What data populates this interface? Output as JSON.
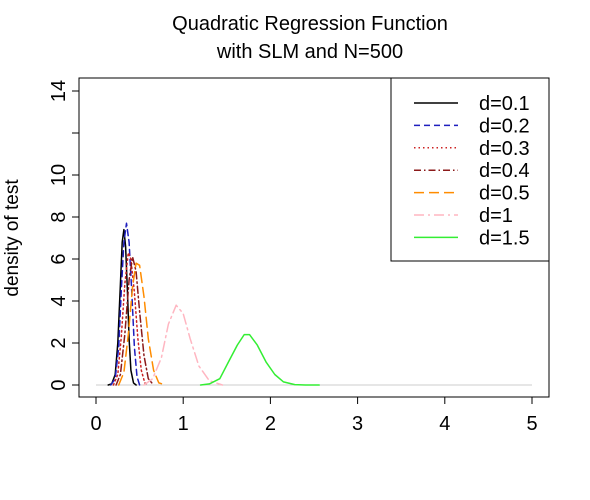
{
  "chart_data": {
    "type": "line",
    "title_lines": [
      "Quadratic Regression Function",
      "with SLM and N=500"
    ],
    "xlabel": "",
    "ylabel": "density of test",
    "xlim": [
      0,
      5
    ],
    "ylim": [
      0,
      14
    ],
    "x_ticks": [
      0,
      1,
      2,
      3,
      4,
      5
    ],
    "y_ticks": [
      0,
      2,
      4,
      6,
      8,
      10,
      14
    ],
    "grid": false,
    "legend_position": "top-right",
    "baseline": 0,
    "series": [
      {
        "name": "d=0.1",
        "color": "#000000",
        "dash": "solid",
        "width": 1.5,
        "points": [
          [
            0.14,
            0
          ],
          [
            0.18,
            0.05
          ],
          [
            0.22,
            0.5
          ],
          [
            0.25,
            2.0
          ],
          [
            0.28,
            4.8
          ],
          [
            0.3,
            6.8
          ],
          [
            0.32,
            7.4
          ],
          [
            0.34,
            6.6
          ],
          [
            0.36,
            4.5
          ],
          [
            0.38,
            2.2
          ],
          [
            0.4,
            0.7
          ],
          [
            0.43,
            0.1
          ],
          [
            0.46,
            0
          ]
        ]
      },
      {
        "name": "d=0.2",
        "color": "#1f1fbf",
        "dash": "6,4",
        "width": 1.5,
        "points": [
          [
            0.17,
            0
          ],
          [
            0.22,
            0.3
          ],
          [
            0.26,
            1.8
          ],
          [
            0.29,
            4.5
          ],
          [
            0.32,
            6.8
          ],
          [
            0.35,
            7.7
          ],
          [
            0.38,
            6.8
          ],
          [
            0.41,
            4.4
          ],
          [
            0.44,
            1.8
          ],
          [
            0.47,
            0.4
          ],
          [
            0.5,
            0
          ]
        ]
      },
      {
        "name": "d=0.3",
        "color": "#cc2222",
        "dash": "1.5,3",
        "width": 1.5,
        "points": [
          [
            0.2,
            0
          ],
          [
            0.25,
            0.5
          ],
          [
            0.29,
            2.3
          ],
          [
            0.33,
            4.8
          ],
          [
            0.37,
            6.3
          ],
          [
            0.4,
            6.0
          ],
          [
            0.44,
            4.4
          ],
          [
            0.48,
            2.2
          ],
          [
            0.52,
            0.7
          ],
          [
            0.56,
            0.1
          ],
          [
            0.6,
            0
          ]
        ]
      },
      {
        "name": "d=0.4",
        "color": "#8b1a1a",
        "dash": "7,3,1.5,3",
        "width": 1.5,
        "points": [
          [
            0.23,
            0
          ],
          [
            0.28,
            0.5
          ],
          [
            0.33,
            2.4
          ],
          [
            0.38,
            5.0
          ],
          [
            0.42,
            6.1
          ],
          [
            0.46,
            5.4
          ],
          [
            0.5,
            3.5
          ],
          [
            0.55,
            1.4
          ],
          [
            0.6,
            0.3
          ],
          [
            0.66,
            0
          ]
        ]
      },
      {
        "name": "d=0.5",
        "color": "#ff8c00",
        "dash": "10,5",
        "width": 1.5,
        "points": [
          [
            0.26,
            0
          ],
          [
            0.32,
            0.6
          ],
          [
            0.37,
            2.4
          ],
          [
            0.42,
            4.7
          ],
          [
            0.46,
            5.8
          ],
          [
            0.5,
            5.7
          ],
          [
            0.55,
            4.2
          ],
          [
            0.6,
            2.2
          ],
          [
            0.66,
            0.7
          ],
          [
            0.72,
            0.1
          ],
          [
            0.8,
            0
          ]
        ]
      },
      {
        "name": "d=1",
        "color": "#ffb6c1",
        "dash": "10,4,2,4",
        "width": 1.5,
        "points": [
          [
            0.55,
            0
          ],
          [
            0.65,
            0.3
          ],
          [
            0.75,
            1.3
          ],
          [
            0.83,
            2.9
          ],
          [
            0.92,
            3.8
          ],
          [
            1.0,
            3.4
          ],
          [
            1.08,
            2.2
          ],
          [
            1.18,
            0.9
          ],
          [
            1.3,
            0.2
          ],
          [
            1.45,
            0
          ]
        ]
      },
      {
        "name": "d=1.5",
        "color": "#33ee33",
        "dash": "solid",
        "width": 1.5,
        "points": [
          [
            1.2,
            0
          ],
          [
            1.3,
            0.05
          ],
          [
            1.42,
            0.3
          ],
          [
            1.52,
            1.1
          ],
          [
            1.62,
            1.9
          ],
          [
            1.7,
            2.4
          ],
          [
            1.76,
            2.4
          ],
          [
            1.85,
            1.9
          ],
          [
            1.95,
            1.1
          ],
          [
            2.05,
            0.5
          ],
          [
            2.15,
            0.15
          ],
          [
            2.28,
            0.02
          ],
          [
            2.4,
            0
          ],
          [
            2.56,
            0
          ]
        ]
      }
    ]
  }
}
